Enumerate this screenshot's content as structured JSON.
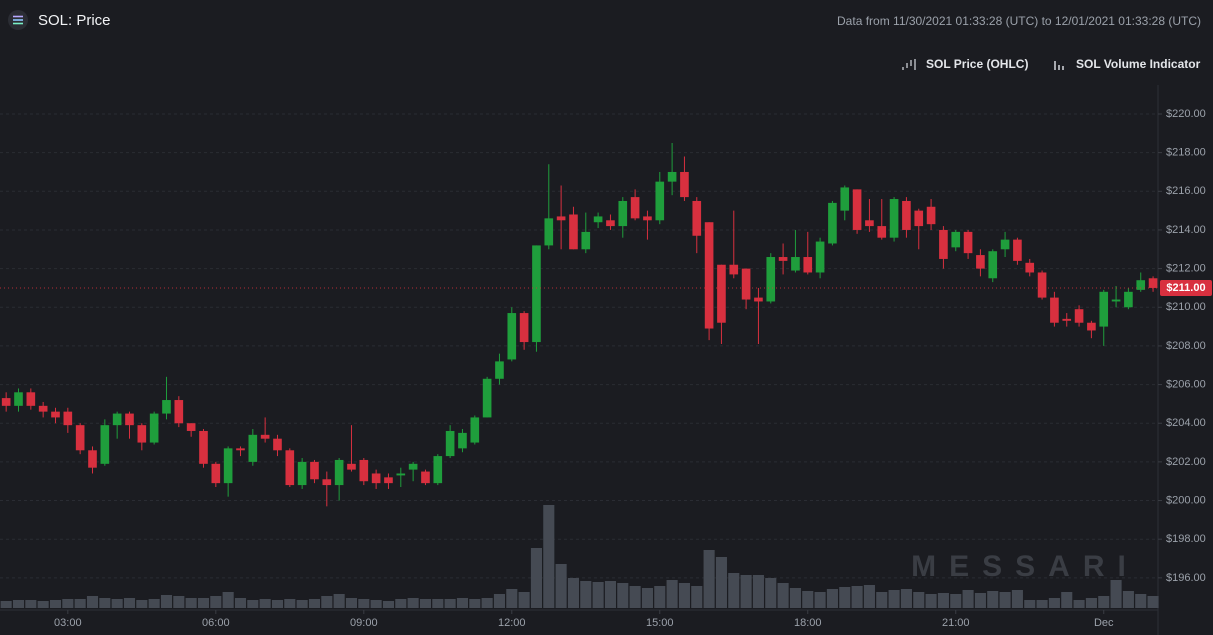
{
  "chart_data": {
    "type": "candlestick",
    "title": "SOL: Price",
    "subtitle": "Data from 11/30/2021 01:33:28 (UTC) to 12/01/2021 01:33:28 (UTC)",
    "series": [
      {
        "name": "SOL Price (OHLC)",
        "up_color": "#1f9e3c",
        "down_color": "#d8303f",
        "open": [
          205.3,
          204.9,
          205.6,
          204.9,
          204.6,
          204.6,
          203.9,
          202.6,
          201.9,
          203.9,
          204.5,
          203.9,
          203.0,
          204.5,
          205.2,
          204.0,
          203.6,
          201.9,
          200.9,
          202.7,
          202.0,
          203.4,
          203.2,
          202.6,
          200.8,
          202.0,
          201.1,
          200.8,
          201.9,
          202.1,
          201.4,
          201.2,
          201.3,
          201.6,
          201.5,
          200.9,
          202.3,
          202.7,
          203.0,
          204.3,
          206.3,
          207.3,
          209.7,
          208.2,
          213.2,
          214.7,
          214.8,
          213.0,
          214.4,
          214.5,
          214.2,
          215.7,
          214.7,
          214.5,
          216.5,
          217.0,
          215.5,
          214.4,
          212.2,
          212.2,
          212.0,
          210.5,
          210.3,
          212.6,
          211.9,
          212.6,
          211.8,
          213.3,
          215.0,
          216.1,
          214.5,
          214.2,
          213.6,
          215.5,
          215.0,
          215.2,
          214.0,
          213.1,
          213.9,
          212.7,
          211.5,
          213.0,
          213.5,
          212.3,
          211.8,
          210.5,
          209.4,
          209.9,
          209.2,
          209.0,
          210.3,
          210.0,
          210.9,
          211.5
        ],
        "high": [
          205.6,
          205.8,
          205.8,
          205.1,
          204.8,
          204.8,
          204.0,
          202.8,
          204.2,
          204.6,
          204.6,
          204.0,
          204.6,
          206.4,
          205.4,
          204.0,
          203.7,
          202.0,
          202.8,
          202.8,
          203.7,
          204.3,
          203.4,
          202.7,
          202.2,
          202.1,
          201.5,
          202.2,
          203.9,
          202.2,
          201.6,
          201.4,
          201.7,
          202.0,
          201.6,
          202.4,
          203.9,
          203.7,
          204.4,
          206.4,
          207.6,
          210.0,
          209.8,
          213.2,
          217.4,
          216.3,
          215.2,
          214.9,
          214.9,
          214.8,
          215.7,
          216.1,
          215.0,
          217.0,
          218.5,
          217.8,
          215.7,
          214.4,
          212.2,
          215.0,
          212.0,
          211.0,
          212.8,
          213.3,
          214.0,
          213.9,
          213.6,
          215.5,
          216.3,
          216.1,
          215.6,
          215.6,
          215.7,
          215.7,
          215.1,
          215.6,
          214.2,
          214.0,
          214.0,
          213.0,
          213.0,
          213.9,
          213.6,
          212.5,
          211.9,
          210.8,
          209.7,
          210.1,
          209.3,
          210.9,
          211.1,
          211.0,
          211.8,
          211.6
        ],
        "low": [
          204.6,
          204.6,
          204.7,
          204.3,
          204.0,
          203.5,
          202.4,
          201.4,
          201.8,
          203.2,
          203.2,
          202.6,
          202.9,
          204.2,
          203.8,
          203.3,
          201.7,
          200.7,
          200.2,
          202.3,
          201.8,
          203.0,
          202.3,
          200.7,
          200.6,
          200.9,
          199.7,
          200.0,
          201.5,
          200.8,
          200.6,
          200.6,
          200.7,
          201.0,
          200.8,
          200.8,
          202.2,
          202.5,
          202.9,
          204.3,
          206.0,
          207.2,
          207.8,
          207.7,
          213.0,
          213.0,
          213.0,
          212.8,
          214.1,
          214.0,
          213.6,
          214.5,
          213.5,
          214.3,
          215.8,
          215.5,
          212.8,
          208.3,
          208.1,
          211.5,
          209.9,
          208.1,
          210.2,
          211.7,
          211.8,
          211.7,
          211.5,
          213.2,
          214.5,
          213.8,
          213.9,
          213.5,
          213.4,
          213.6,
          213.0,
          214.0,
          212.0,
          212.9,
          212.5,
          211.6,
          211.3,
          212.6,
          212.2,
          211.6,
          210.4,
          209.0,
          209.0,
          209.0,
          208.4,
          208.0,
          210.0,
          209.9,
          210.8,
          210.8
        ],
        "close": [
          204.9,
          205.6,
          204.9,
          204.6,
          204.3,
          203.9,
          202.6,
          201.7,
          203.9,
          204.5,
          203.9,
          203.0,
          204.5,
          205.2,
          204.0,
          203.6,
          201.9,
          200.9,
          202.7,
          202.6,
          203.4,
          203.2,
          202.6,
          200.8,
          202.0,
          201.1,
          200.8,
          202.1,
          201.6,
          201.0,
          200.9,
          200.9,
          201.4,
          201.9,
          200.9,
          202.3,
          203.6,
          203.5,
          204.3,
          206.3,
          207.2,
          209.7,
          208.2,
          213.2,
          214.6,
          214.5,
          213.0,
          213.9,
          214.7,
          214.2,
          215.5,
          214.6,
          214.5,
          216.5,
          217.0,
          215.7,
          213.7,
          208.9,
          209.2,
          211.7,
          210.4,
          210.3,
          212.6,
          212.4,
          212.6,
          211.8,
          213.4,
          215.4,
          216.2,
          214.0,
          214.2,
          213.6,
          215.6,
          214.0,
          214.2,
          214.3,
          212.5,
          213.9,
          212.8,
          212.0,
          212.9,
          213.5,
          212.4,
          211.8,
          210.5,
          209.2,
          209.3,
          209.2,
          208.8,
          210.8,
          210.4,
          210.8,
          211.4,
          211.0
        ]
      },
      {
        "name": "SOL Volume Indicator",
        "type": "bar",
        "axis": "y2",
        "color": "#454a53",
        "values": [
          7,
          8,
          8,
          7,
          8,
          9,
          9,
          12,
          10,
          9,
          10,
          8,
          9,
          13,
          12,
          10,
          10,
          12,
          16,
          10,
          8,
          9,
          8,
          9,
          8,
          9,
          12,
          14,
          10,
          9,
          8,
          7,
          9,
          10,
          9,
          9,
          9,
          10,
          9,
          10,
          14,
          19,
          16,
          60,
          103,
          44,
          30,
          27,
          26,
          27,
          25,
          22,
          20,
          22,
          28,
          25,
          22,
          58,
          51,
          35,
          33,
          33,
          30,
          25,
          20,
          17,
          16,
          19,
          21,
          22,
          23,
          16,
          18,
          19,
          16,
          14,
          15,
          14,
          18,
          15,
          17,
          16,
          18,
          8,
          8,
          10,
          16,
          8,
          10,
          12,
          28,
          17,
          14,
          12
        ]
      }
    ],
    "xlim": [
      -0.5,
      93.4
    ],
    "xticks": [
      {
        "value": 5,
        "label": "03:00"
      },
      {
        "value": 17,
        "label": "06:00"
      },
      {
        "value": 29,
        "label": "09:00"
      },
      {
        "value": 41,
        "label": "12:00"
      },
      {
        "value": 53,
        "label": "15:00"
      },
      {
        "value": 65,
        "label": "18:00"
      },
      {
        "value": 77,
        "label": "21:00"
      },
      {
        "value": 89,
        "label": "Dec"
      }
    ],
    "ylim": [
      194.44,
      221.5
    ],
    "yticks": [
      {
        "value": 196,
        "label": "$196.00"
      },
      {
        "value": 198,
        "label": "$198.00"
      },
      {
        "value": 200,
        "label": "$200.00"
      },
      {
        "value": 202,
        "label": "$202.00"
      },
      {
        "value": 204,
        "label": "$204.00"
      },
      {
        "value": 206,
        "label": "$206.00"
      },
      {
        "value": 208,
        "label": "$208.00"
      },
      {
        "value": 210,
        "label": "$210.00"
      },
      {
        "value": 212,
        "label": "$212.00"
      },
      {
        "value": 214,
        "label": "$214.00"
      },
      {
        "value": 216,
        "label": "$216.00"
      },
      {
        "value": 218,
        "label": "$218.00"
      },
      {
        "value": 220,
        "label": "$220.00"
      }
    ],
    "y2lim": [
      0,
      103
    ],
    "grid": true,
    "last_price": {
      "value": 211,
      "label": "$211.00"
    },
    "watermark": "MESSARI"
  }
}
